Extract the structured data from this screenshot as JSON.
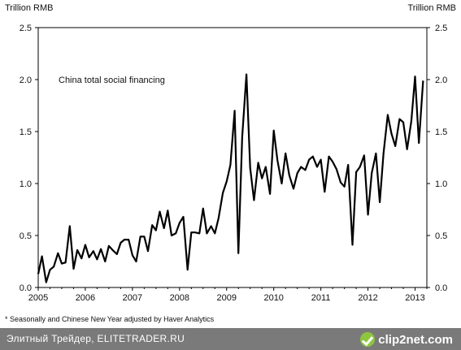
{
  "chart_data": {
    "type": "line",
    "title": "",
    "ylabel_left": "Trillion RMB",
    "ylabel_right": "Trillion RMB",
    "annotation": "China total social financing",
    "ylim": [
      0,
      2.5
    ],
    "xlim": [
      2005,
      2013.25
    ],
    "yticks": [
      "0.0",
      "0.5",
      "1.0",
      "1.5",
      "2.0",
      "2.5"
    ],
    "xticks": [
      "2005",
      "2006",
      "2007",
      "2008",
      "2009",
      "2010",
      "2011",
      "2012",
      "2013"
    ],
    "grid": false,
    "series": [
      {
        "color": "#000000",
        "x": [
          2005.0,
          2005.08,
          2005.17,
          2005.25,
          2005.33,
          2005.42,
          2005.5,
          2005.58,
          2005.67,
          2005.75,
          2005.83,
          2005.92,
          2006.0,
          2006.08,
          2006.17,
          2006.25,
          2006.33,
          2006.42,
          2006.5,
          2006.58,
          2006.67,
          2006.75,
          2006.83,
          2006.92,
          2007.0,
          2007.08,
          2007.17,
          2007.25,
          2007.33,
          2007.42,
          2007.5,
          2007.58,
          2007.67,
          2007.75,
          2007.83,
          2007.92,
          2008.0,
          2008.08,
          2008.17,
          2008.25,
          2008.33,
          2008.42,
          2008.5,
          2008.58,
          2008.67,
          2008.75,
          2008.83,
          2008.92,
          2009.0,
          2009.08,
          2009.17,
          2009.25,
          2009.33,
          2009.42,
          2009.5,
          2009.58,
          2009.67,
          2009.75,
          2009.83,
          2009.92,
          2010.0,
          2010.08,
          2010.17,
          2010.25,
          2010.33,
          2010.42,
          2010.5,
          2010.58,
          2010.67,
          2010.75,
          2010.83,
          2010.92,
          2011.0,
          2011.08,
          2011.17,
          2011.25,
          2011.33,
          2011.42,
          2011.5,
          2011.58,
          2011.67,
          2011.75,
          2011.83,
          2011.92,
          2012.0,
          2012.08,
          2012.17,
          2012.25,
          2012.33,
          2012.42,
          2012.5,
          2012.58,
          2012.67,
          2012.75,
          2012.83,
          2012.92,
          2013.0,
          2013.08,
          2013.17
        ],
        "y": [
          0.13,
          0.3,
          0.05,
          0.17,
          0.2,
          0.33,
          0.23,
          0.24,
          0.59,
          0.18,
          0.36,
          0.28,
          0.41,
          0.29,
          0.35,
          0.27,
          0.37,
          0.25,
          0.4,
          0.36,
          0.32,
          0.43,
          0.46,
          0.46,
          0.31,
          0.25,
          0.49,
          0.49,
          0.35,
          0.6,
          0.55,
          0.73,
          0.57,
          0.74,
          0.5,
          0.52,
          0.62,
          0.68,
          0.17,
          0.53,
          0.53,
          0.52,
          0.76,
          0.52,
          0.59,
          0.52,
          0.67,
          0.91,
          1.02,
          1.18,
          1.7,
          0.33,
          1.45,
          2.05,
          1.15,
          0.84,
          1.2,
          1.05,
          1.16,
          0.9,
          1.51,
          1.22,
          1.0,
          1.29,
          1.08,
          0.95,
          1.1,
          1.16,
          1.13,
          1.23,
          1.26,
          1.16,
          1.23,
          0.92,
          1.26,
          1.21,
          1.14,
          1.01,
          0.97,
          1.18,
          0.41,
          1.11,
          1.16,
          1.27,
          0.7,
          1.1,
          1.29,
          0.82,
          1.29,
          1.66,
          1.48,
          1.36,
          1.62,
          1.59,
          1.33,
          1.6,
          2.03,
          1.39,
          1.99
        ]
      }
    ]
  },
  "footnote": "* Seasonally and Chinese New Year adjusted by Haver Analytics",
  "footer": {
    "text": "Элитный Трейдер, ELITETRADER.RU",
    "logo_text": "clip2net.com",
    "logo_color": "#8ec63f",
    "bar_color": "#7a7a7a"
  }
}
